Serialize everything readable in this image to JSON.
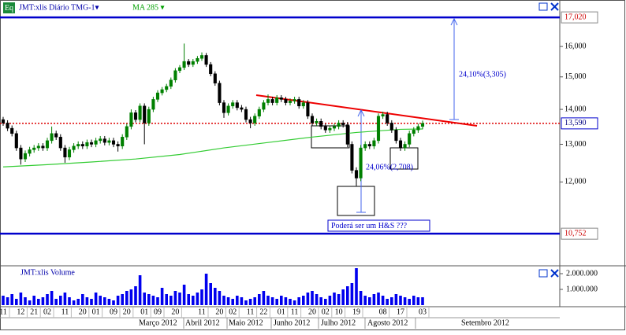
{
  "chart_data": {
    "type": "candlestick",
    "badge": "Eq",
    "title": "JMT:xlis Diário TMG-1▾",
    "log_scale": true,
    "grid": false,
    "up_color": "#008000",
    "down_color": "#000000",
    "ylim": [
      10.06,
      17.08
    ],
    "yticks": [
      {
        "value": 12,
        "label": "12,000"
      },
      {
        "value": 13,
        "label": "13,000"
      },
      {
        "value": 14,
        "label": "14,000"
      },
      {
        "value": 15,
        "label": "15,000"
      },
      {
        "value": 16,
        "label": "16,000"
      }
    ],
    "levels": [
      {
        "value": 17.02,
        "label": "17,020",
        "color": "#0000cc"
      },
      {
        "value": 10.752,
        "label": "10,752",
        "color": "#0000cc"
      }
    ],
    "last_price": {
      "value": 13.59,
      "label": "13,590",
      "color": "#dd0000"
    },
    "annotations": [
      "24,10%(3,305)",
      "24,06%(2,708)",
      "Poderá ser  um   H&S   ???"
    ],
    "categories": [
      "11",
      null,
      null,
      null,
      "12",
      null,
      null,
      "21",
      null,
      null,
      "02",
      null,
      null,
      null,
      "11",
      null,
      null,
      null,
      "20",
      null,
      null,
      "01",
      null,
      null,
      null,
      "09",
      null,
      null,
      "20",
      null,
      null,
      null,
      "01",
      null,
      null,
      "09",
      null,
      null,
      null,
      "20",
      null,
      null,
      null,
      null,
      null,
      "11",
      null,
      null,
      null,
      "20",
      null,
      null,
      "02",
      null,
      null,
      null,
      "11",
      null,
      null,
      "22",
      null,
      null,
      null,
      "01",
      null,
      null,
      "11",
      null,
      null,
      null,
      "20",
      null,
      null,
      "02",
      null,
      null,
      "10",
      null,
      null,
      null,
      "19",
      null,
      null,
      null,
      null,
      null,
      "08",
      null,
      null,
      null,
      "17",
      null,
      null,
      null,
      null,
      "03"
    ],
    "months": [
      "Março 2012",
      "Abril 2012",
      "Maio 2012",
      "Junho 2012",
      "Julho 2012",
      "Agosto 2012",
      "Setembro 2012"
    ],
    "open": [
      13.7,
      13.6,
      13.45,
      13.3,
      12.9,
      12.6,
      12.75,
      12.85,
      12.9,
      12.95,
      12.9,
      13.1,
      13.3,
      13.2,
      12.9,
      12.65,
      12.85,
      12.95,
      13.0,
      12.95,
      13.05,
      13.0,
      13.1,
      13.15,
      13.05,
      13.1,
      13.0,
      12.95,
      13.2,
      13.5,
      13.9,
      13.7,
      14.1,
      13.6,
      14.0,
      14.3,
      14.5,
      14.6,
      14.7,
      14.9,
      15.2,
      15.3,
      15.5,
      15.4,
      15.5,
      15.6,
      15.7,
      15.4,
      15.1,
      14.8,
      14.2,
      13.9,
      14.1,
      14.2,
      14.05,
      14.0,
      13.7,
      13.6,
      13.8,
      14.0,
      14.2,
      14.3,
      14.2,
      14.35,
      14.3,
      14.2,
      14.25,
      14.3,
      14.1,
      14.2,
      13.8,
      13.6,
      13.65,
      13.5,
      13.4,
      13.45,
      13.5,
      13.6,
      13.55,
      13.0,
      12.3,
      12.1,
      12.9,
      13.0,
      12.95,
      13.1,
      13.8,
      13.85,
      13.6,
      13.4,
      13.1,
      12.9,
      13.0,
      13.3,
      13.4,
      13.5
    ],
    "high": [
      13.78,
      13.68,
      13.53,
      13.38,
      12.98,
      12.83,
      12.93,
      12.98,
      13.03,
      13.03,
      13.18,
      13.5,
      13.38,
      13.28,
      12.98,
      12.93,
      13.03,
      13.08,
      13.08,
      13.13,
      13.13,
      13.18,
      13.23,
      13.23,
      13.18,
      13.18,
      13.08,
      13.28,
      13.58,
      14.0,
      13.98,
      14.18,
      14.18,
      14.08,
      14.38,
      14.58,
      14.68,
      14.78,
      14.98,
      15.28,
      15.38,
      16.1,
      15.58,
      15.58,
      15.68,
      15.8,
      15.78,
      15.48,
      15.18,
      14.88,
      14.28,
      14.18,
      14.28,
      14.28,
      14.13,
      14.08,
      13.78,
      13.88,
      14.08,
      14.28,
      14.45,
      14.38,
      14.43,
      14.43,
      14.38,
      14.33,
      14.38,
      14.38,
      14.28,
      14.28,
      13.88,
      13.73,
      13.73,
      13.58,
      13.53,
      13.58,
      13.68,
      13.68,
      13.63,
      13.08,
      12.38,
      12.98,
      13.08,
      13.08,
      13.18,
      13.88,
      13.93,
      13.93,
      13.68,
      13.48,
      13.18,
      13.08,
      13.38,
      13.48,
      13.58,
      13.67
    ],
    "low": [
      13.52,
      13.37,
      13.22,
      12.82,
      12.45,
      12.52,
      12.67,
      12.77,
      12.82,
      12.82,
      12.82,
      13.02,
      13.12,
      12.82,
      12.5,
      12.57,
      12.77,
      12.87,
      12.87,
      12.87,
      12.92,
      12.92,
      13.02,
      12.97,
      12.97,
      12.92,
      12.8,
      12.87,
      13.12,
      13.42,
      13.62,
      13.62,
      13.0,
      13.52,
      13.92,
      14.22,
      14.42,
      14.52,
      14.62,
      14.82,
      15.12,
      15.22,
      15.32,
      15.32,
      15.42,
      15.52,
      15.32,
      15.02,
      14.72,
      14.12,
      13.75,
      13.82,
      14.02,
      13.97,
      13.92,
      13.62,
      13.45,
      13.52,
      13.72,
      13.92,
      14.12,
      14.12,
      14.12,
      14.22,
      14.12,
      14.12,
      14.17,
      14.02,
      14.02,
      13.72,
      13.52,
      13.52,
      13.42,
      13.32,
      13.32,
      13.37,
      13.42,
      13.47,
      12.92,
      12.22,
      11.9,
      12.02,
      12.82,
      12.87,
      12.87,
      13.02,
      13.72,
      13.52,
      13.32,
      13.02,
      12.82,
      12.82,
      12.92,
      13.22,
      13.32,
      13.42
    ],
    "close": [
      13.6,
      13.45,
      13.3,
      12.9,
      12.6,
      12.75,
      12.85,
      12.9,
      12.95,
      12.9,
      13.1,
      13.3,
      13.2,
      12.9,
      12.65,
      12.85,
      12.95,
      13.0,
      12.95,
      13.05,
      13.0,
      13.1,
      13.15,
      13.05,
      13.1,
      13.0,
      12.95,
      13.2,
      13.5,
      13.9,
      13.7,
      14.1,
      13.6,
      14.0,
      14.3,
      14.5,
      14.6,
      14.7,
      14.9,
      15.2,
      15.3,
      15.5,
      15.4,
      15.5,
      15.6,
      15.7,
      15.4,
      15.1,
      14.8,
      14.2,
      13.9,
      14.1,
      14.2,
      14.05,
      14.0,
      13.7,
      13.6,
      13.8,
      14.0,
      14.2,
      14.3,
      14.2,
      14.35,
      14.3,
      14.2,
      14.25,
      14.3,
      14.1,
      14.2,
      13.8,
      13.6,
      13.65,
      13.5,
      13.4,
      13.45,
      13.5,
      13.6,
      13.55,
      13.0,
      12.3,
      12.1,
      12.9,
      13.0,
      12.95,
      13.1,
      13.8,
      13.85,
      13.6,
      13.4,
      13.1,
      12.9,
      13.0,
      13.3,
      13.4,
      13.5,
      13.59
    ],
    "ma": {
      "name": "MA 285 ▾",
      "color": "#33cc33",
      "x": [
        0,
        10,
        20,
        30,
        40,
        50,
        60,
        70,
        80,
        90,
        95
      ],
      "values": [
        12.39,
        12.45,
        12.52,
        12.6,
        12.72,
        12.9,
        13.05,
        13.2,
        13.33,
        13.42,
        13.43
      ]
    },
    "volume": {
      "name": "JMT:xlis Volume",
      "color": "#0000ee",
      "ylim": [
        0,
        2400000
      ],
      "yticks": [
        {
          "value": 1000000,
          "label": "1.000.000"
        },
        {
          "value": 2000000,
          "label": "2.000.000"
        }
      ],
      "values": [
        600000,
        500000,
        700000,
        400000,
        800000,
        500000,
        300000,
        600000,
        400000,
        500000,
        700000,
        900000,
        400000,
        600000,
        800000,
        500000,
        300000,
        400000,
        700000,
        500000,
        400000,
        800000,
        600000,
        500000,
        400000,
        300000,
        600000,
        700000,
        900000,
        1000000,
        1200000,
        1900000,
        800000,
        700000,
        600000,
        500000,
        1100000,
        700000,
        600000,
        900000,
        800000,
        1300000,
        700000,
        600000,
        800000,
        1000000,
        2000000,
        1400000,
        1100000,
        900000,
        600000,
        500000,
        400000,
        600000,
        500000,
        300000,
        400000,
        500000,
        700000,
        900000,
        600000,
        500000,
        400000,
        600000,
        500000,
        400000,
        300000,
        500000,
        600000,
        800000,
        900000,
        700000,
        500000,
        400000,
        600000,
        800000,
        700000,
        1000000,
        1200000,
        1400000,
        2350000,
        900000,
        600000,
        500000,
        700000,
        800000,
        600000,
        400000,
        500000,
        700000,
        600000,
        500000,
        400000,
        600000,
        500000,
        500000
      ]
    }
  }
}
